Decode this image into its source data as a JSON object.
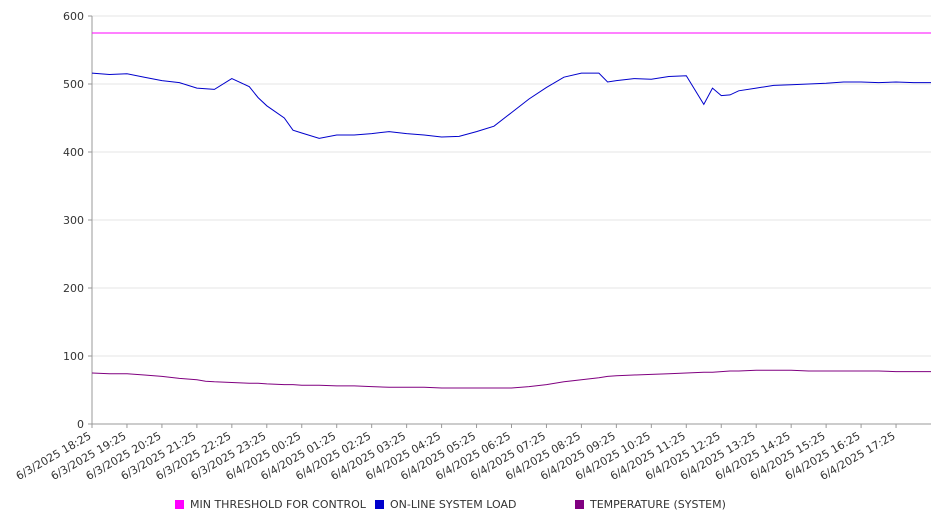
{
  "chart_data": {
    "type": "line",
    "title": "",
    "xlabel": "",
    "ylabel": "",
    "ylim": [
      0,
      600
    ],
    "y_ticks": [
      0,
      100,
      200,
      300,
      400,
      500,
      600
    ],
    "grid": true,
    "legend_position": "bottom",
    "x_tick_labels": [
      "6/3/2025 18:25",
      "6/3/2025 19:25",
      "6/3/2025 20:25",
      "6/3/2025 21:25",
      "6/3/2025 22:25",
      "6/3/2025 23:25",
      "6/4/2025 00:25",
      "6/4/2025 01:25",
      "6/4/2025 02:25",
      "6/4/2025 03:25",
      "6/4/2025 04:25",
      "6/4/2025 05:25",
      "6/4/2025 06:25",
      "6/4/2025 07:25",
      "6/4/2025 08:25",
      "6/4/2025 09:25",
      "6/4/2025 10:25",
      "6/4/2025 11:25",
      "6/4/2025 12:25",
      "6/4/2025 13:25",
      "6/4/2025 14:25",
      "6/4/2025 15:25",
      "6/4/2025 16:25",
      "6/4/2025 17:25"
    ],
    "x": [
      "6/3/2025 18:25",
      "6/3/2025 18:55",
      "6/3/2025 19:25",
      "6/3/2025 19:55",
      "6/3/2025 20:25",
      "6/3/2025 20:55",
      "6/3/2025 21:25",
      "6/3/2025 21:40",
      "6/3/2025 21:55",
      "6/3/2025 22:25",
      "6/3/2025 22:55",
      "6/3/2025 23:10",
      "6/3/2025 23:25",
      "6/3/2025 23:55",
      "6/4/2025 00:10",
      "6/4/2025 00:25",
      "6/4/2025 00:55",
      "6/4/2025 01:25",
      "6/4/2025 01:55",
      "6/4/2025 02:25",
      "6/4/2025 02:55",
      "6/4/2025 03:25",
      "6/4/2025 03:55",
      "6/4/2025 04:25",
      "6/4/2025 04:55",
      "6/4/2025 05:25",
      "6/4/2025 05:55",
      "6/4/2025 06:25",
      "6/4/2025 06:55",
      "6/4/2025 07:25",
      "6/4/2025 07:55",
      "6/4/2025 08:25",
      "6/4/2025 08:55",
      "6/4/2025 09:10",
      "6/4/2025 09:25",
      "6/4/2025 09:55",
      "6/4/2025 10:25",
      "6/4/2025 10:55",
      "6/4/2025 11:25",
      "6/4/2025 11:55",
      "6/4/2025 12:10",
      "6/4/2025 12:25",
      "6/4/2025 12:40",
      "6/4/2025 12:55",
      "6/4/2025 13:25",
      "6/4/2025 13:55",
      "6/4/2025 14:25",
      "6/4/2025 14:55",
      "6/4/2025 15:25",
      "6/4/2025 15:55",
      "6/4/2025 16:25",
      "6/4/2025 16:55",
      "6/4/2025 17:25",
      "6/4/2025 17:55",
      "6/4/2025 18:25"
    ],
    "series": [
      {
        "name": "MIN THRESHOLD FOR CONTROL",
        "color": "#ff00ff",
        "values": [
          575,
          575,
          575,
          575,
          575,
          575,
          575,
          575,
          575,
          575,
          575,
          575,
          575,
          575,
          575,
          575,
          575,
          575,
          575,
          575,
          575,
          575,
          575,
          575,
          575,
          575,
          575,
          575,
          575,
          575,
          575,
          575,
          575,
          575,
          575,
          575,
          575,
          575,
          575,
          575,
          575,
          575,
          575,
          575,
          575,
          575,
          575,
          575,
          575,
          575,
          575,
          575,
          575,
          575,
          575
        ]
      },
      {
        "name": "ON-LINE SYSTEM LOAD",
        "color": "#0000cc",
        "values": [
          516,
          514,
          515,
          510,
          505,
          502,
          494,
          493,
          492,
          508,
          496,
          480,
          468,
          450,
          432,
          428,
          420,
          425,
          425,
          427,
          430,
          427,
          425,
          422,
          423,
          430,
          438,
          458,
          478,
          495,
          510,
          516,
          516,
          503,
          505,
          508,
          507,
          511,
          512,
          470,
          494,
          483,
          484,
          490,
          494,
          498,
          499,
          500,
          501,
          503,
          503,
          502,
          503,
          502,
          502
        ]
      },
      {
        "name": "TEMPERATURE (SYSTEM)",
        "color": "#800080",
        "values": [
          75,
          74,
          74,
          72,
          70,
          67,
          65,
          63,
          62,
          61,
          60,
          60,
          59,
          58,
          58,
          57,
          57,
          56,
          56,
          55,
          54,
          54,
          54,
          53,
          53,
          53,
          53,
          53,
          55,
          58,
          62,
          65,
          68,
          70,
          71,
          72,
          73,
          74,
          75,
          76,
          76,
          77,
          78,
          78,
          79,
          79,
          79,
          78,
          78,
          78,
          78,
          78,
          77,
          77,
          77
        ]
      }
    ]
  }
}
